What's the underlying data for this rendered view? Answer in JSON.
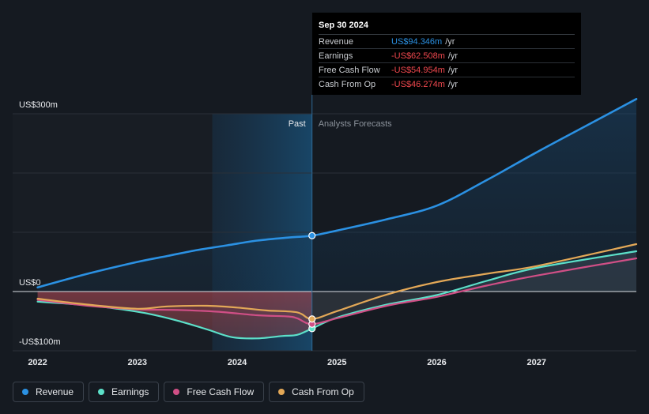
{
  "chart_data": {
    "type": "line",
    "x_ticks": [
      {
        "value": 2022,
        "label": "2022"
      },
      {
        "value": 2023,
        "label": "2023"
      },
      {
        "value": 2024,
        "label": "2024"
      },
      {
        "value": 2025,
        "label": "2025"
      },
      {
        "value": 2026,
        "label": "2026"
      },
      {
        "value": 2027,
        "label": "2027"
      }
    ],
    "xlim": [
      2021.75,
      2028.0
    ],
    "ylim": [
      -100,
      300
    ],
    "y_ticks": [
      {
        "value": 300,
        "label": "US$300m"
      },
      {
        "value": 0,
        "label": "US$0"
      },
      {
        "value": -100,
        "label": "-US$100m"
      }
    ],
    "grid_values": [
      300,
      200,
      100,
      0,
      -100
    ],
    "past_shade_start": 2023.75,
    "divider_x": 2024.75,
    "past_label": "Past",
    "forecast_label": "Analysts Forecasts",
    "series": [
      {
        "name": "Revenue",
        "color": "#2b91e3",
        "points": [
          [
            2022.0,
            7
          ],
          [
            2022.5,
            30
          ],
          [
            2023.0,
            50
          ],
          [
            2023.3,
            60
          ],
          [
            2023.6,
            70
          ],
          [
            2023.9,
            78
          ],
          [
            2024.2,
            86
          ],
          [
            2024.5,
            91
          ],
          [
            2024.75,
            94.3
          ],
          [
            2025.0,
            103
          ],
          [
            2025.5,
            122
          ],
          [
            2026.0,
            145
          ],
          [
            2026.5,
            188
          ],
          [
            2027.0,
            235
          ],
          [
            2027.5,
            280
          ],
          [
            2028.0,
            325
          ]
        ]
      },
      {
        "name": "Earnings",
        "color": "#5ce0c9",
        "points": [
          [
            2022.0,
            -17
          ],
          [
            2022.5,
            -23
          ],
          [
            2022.8,
            -29
          ],
          [
            2023.1,
            -37
          ],
          [
            2023.4,
            -49
          ],
          [
            2023.7,
            -64
          ],
          [
            2023.95,
            -77
          ],
          [
            2024.2,
            -79
          ],
          [
            2024.45,
            -75
          ],
          [
            2024.6,
            -73
          ],
          [
            2024.75,
            -62.5
          ],
          [
            2025.0,
            -44
          ],
          [
            2025.5,
            -22
          ],
          [
            2026.0,
            -6
          ],
          [
            2026.5,
            18
          ],
          [
            2027.0,
            40
          ],
          [
            2028.0,
            68
          ]
        ]
      },
      {
        "name": "Free Cash Flow",
        "color": "#d04f86",
        "points": [
          [
            2022.0,
            -14
          ],
          [
            2022.5,
            -24
          ],
          [
            2023.0,
            -30
          ],
          [
            2023.4,
            -31
          ],
          [
            2023.8,
            -34
          ],
          [
            2024.2,
            -40
          ],
          [
            2024.5,
            -42
          ],
          [
            2024.6,
            -45
          ],
          [
            2024.75,
            -55
          ],
          [
            2025.0,
            -45
          ],
          [
            2025.5,
            -24
          ],
          [
            2026.0,
            -9
          ],
          [
            2026.5,
            10
          ],
          [
            2027.0,
            27
          ],
          [
            2028.0,
            56
          ]
        ]
      },
      {
        "name": "Cash From Op",
        "color": "#e3a857",
        "points": [
          [
            2022.0,
            -12
          ],
          [
            2022.5,
            -22
          ],
          [
            2023.0,
            -29
          ],
          [
            2023.3,
            -25
          ],
          [
            2023.7,
            -24
          ],
          [
            2024.0,
            -27
          ],
          [
            2024.3,
            -32
          ],
          [
            2024.6,
            -35
          ],
          [
            2024.75,
            -46.3
          ],
          [
            2025.0,
            -33
          ],
          [
            2025.5,
            -5
          ],
          [
            2026.0,
            16
          ],
          [
            2026.5,
            30
          ],
          [
            2027.0,
            43
          ],
          [
            2028.0,
            80
          ]
        ]
      }
    ]
  },
  "tooltip": {
    "date": "Sep 30 2024",
    "rows": [
      {
        "label": "Revenue",
        "value": "US$94.346m",
        "unit": "/yr",
        "color": "#2b91e3"
      },
      {
        "label": "Earnings",
        "value": "-US$62.508m",
        "unit": "/yr",
        "color": "#f0484e"
      },
      {
        "label": "Free Cash Flow",
        "value": "-US$54.954m",
        "unit": "/yr",
        "color": "#f0484e"
      },
      {
        "label": "Cash From Op",
        "value": "-US$46.274m",
        "unit": "/yr",
        "color": "#f0484e"
      }
    ]
  },
  "legend": [
    {
      "label": "Revenue",
      "color": "#2b91e3"
    },
    {
      "label": "Earnings",
      "color": "#5ce0c9"
    },
    {
      "label": "Free Cash Flow",
      "color": "#d04f86"
    },
    {
      "label": "Cash From Op",
      "color": "#e3a857"
    }
  ]
}
